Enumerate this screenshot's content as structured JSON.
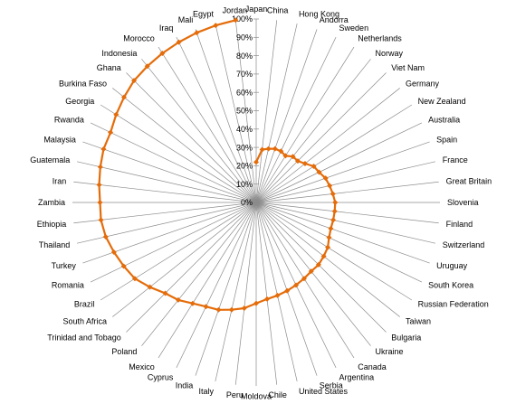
{
  "chart_data": {
    "type": "radar",
    "title": "",
    "rlim": [
      0,
      100
    ],
    "r_ticks": [
      "0%",
      "10%",
      "20%",
      "30%",
      "40%",
      "50%",
      "60%",
      "70%",
      "80%",
      "90%",
      "100%"
    ],
    "grid": "spokes",
    "legend": "none",
    "categories": [
      "Japan",
      "China",
      "Hong Kong",
      "Andorra",
      "Sweden",
      "Netherlands",
      "Norway",
      "Viet Nam",
      "Germany",
      "New Zealand",
      "Australia",
      "Spain",
      "France",
      "Great Britain",
      "Slovenia",
      "Finland",
      "Switzerland",
      "Uruguay",
      "South Korea",
      "Russian Federation",
      "Taiwan",
      "Bulgaria",
      "Ukraine",
      "Canada",
      "Argentina",
      "Serbia",
      "United States",
      "Chile",
      "Moldova",
      "Peru",
      "Italy",
      "India",
      "Cyprus",
      "Mexico",
      "Poland",
      "Trinidad and Tobago",
      "South Africa",
      "Brazil",
      "Romania",
      "Turkey",
      "Thailand",
      "Ethiopia",
      "Zambia",
      "Iran",
      "Guatemala",
      "Malaysia",
      "Rwanda",
      "Georgia",
      "Burkina Faso",
      "Ghana",
      "Indonesia",
      "Morocco",
      "Iraq",
      "Mali",
      "Egypt",
      "Jordan"
    ],
    "series": [
      {
        "color": "#e46c0a",
        "values": [
          22,
          29,
          30,
          31,
          31,
          30,
          32,
          32,
          34,
          37,
          38,
          40,
          41,
          42,
          43,
          43,
          43,
          43,
          44,
          46,
          47,
          48,
          48,
          49,
          50,
          51,
          52,
          53,
          55,
          58,
          60,
          62,
          63,
          65,
          68,
          70,
          74,
          78,
          80,
          82,
          84,
          85,
          85,
          86,
          87,
          88,
          88,
          90,
          92,
          94,
          95,
          96,
          97,
          98,
          99,
          100
        ]
      }
    ]
  }
}
